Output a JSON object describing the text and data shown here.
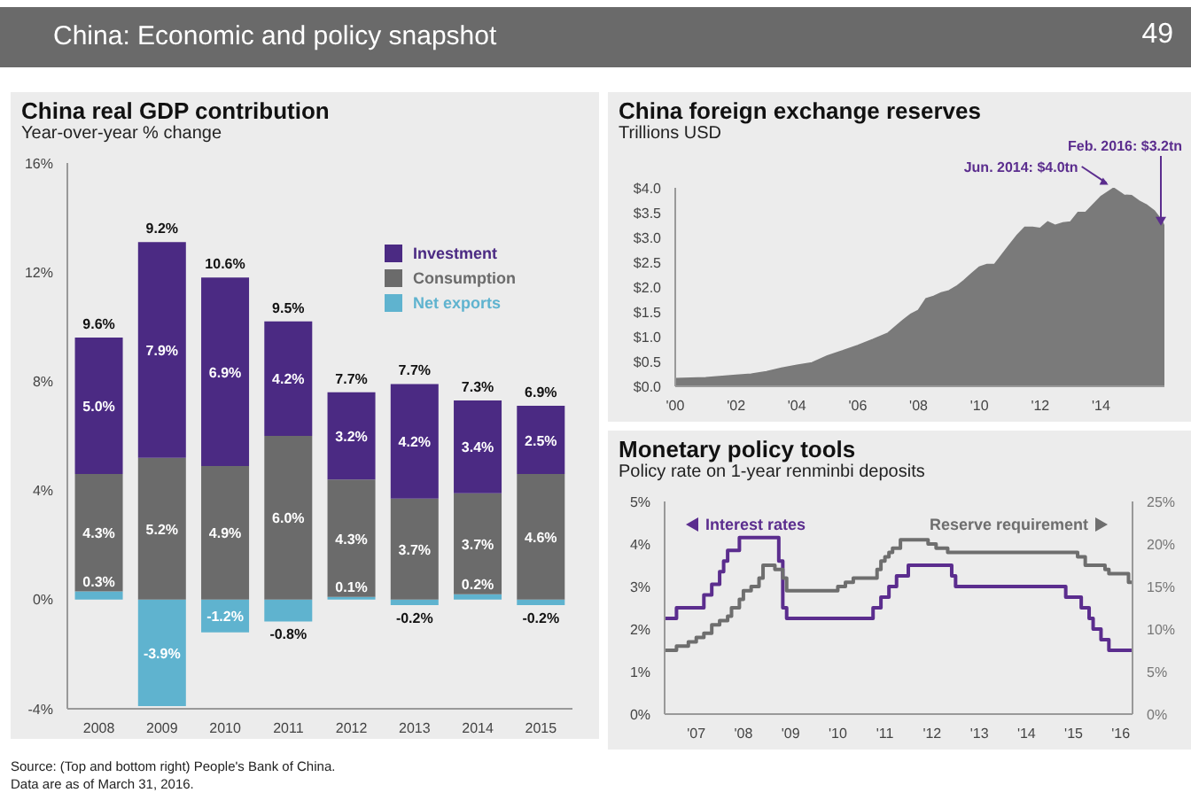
{
  "chart_data": [
    {
      "type": "bar",
      "title": "China real GDP contribution",
      "subtitle": "Year-over-year % change",
      "categories": [
        "2008",
        "2009",
        "2010",
        "2011",
        "2012",
        "2013",
        "2014",
        "2015"
      ],
      "stacked": true,
      "series": [
        {
          "name": "Net exports",
          "color": "#5fb3cf",
          "values": [
            0.3,
            -3.9,
            -1.2,
            -0.8,
            0.1,
            -0.2,
            0.2,
            -0.2
          ],
          "value_labels": [
            "0.3%",
            "-3.9%",
            "-1.2%",
            "-0.8%",
            "0.1%",
            "-0.2%",
            "0.2%",
            "-0.2%"
          ]
        },
        {
          "name": "Consumption",
          "color": "#6b6b6b",
          "values": [
            4.3,
            5.2,
            4.9,
            6.0,
            4.3,
            3.7,
            3.7,
            4.6
          ],
          "value_labels": [
            "4.3%",
            "5.2%",
            "4.9%",
            "6.0%",
            "4.3%",
            "3.7%",
            "3.7%",
            "4.6%"
          ]
        },
        {
          "name": "Investment",
          "color": "#4b2a83",
          "values": [
            5.0,
            7.9,
            6.9,
            4.2,
            3.2,
            4.2,
            3.4,
            2.5
          ],
          "value_labels": [
            "5.0%",
            "7.9%",
            "6.9%",
            "4.2%",
            "3.2%",
            "4.2%",
            "3.4%",
            "2.5%"
          ]
        }
      ],
      "totals": [
        "9.6%",
        "9.2%",
        "10.6%",
        "9.5%",
        "7.7%",
        "7.7%",
        "7.3%",
        "6.9%"
      ],
      "ylim": [
        -4,
        16
      ],
      "yticks": [
        {
          "value": -4,
          "label": "-4%"
        },
        {
          "value": 0,
          "label": "0%"
        },
        {
          "value": 4,
          "label": "4%"
        },
        {
          "value": 8,
          "label": "8%"
        },
        {
          "value": 12,
          "label": "12%"
        },
        {
          "value": 16,
          "label": "16%"
        }
      ],
      "legend": "top right",
      "annotations": [
        "China: Economic and policy snapshot",
        "49",
        "Source: (Top and bottom right) People's Bank of China.",
        "Data are as of March 31, 2016."
      ]
    },
    {
      "type": "area",
      "title": "China foreign exchange reserves",
      "subtitle": "Trillions USD",
      "color": "#7a7a7a",
      "x": [
        "2000-01",
        "2001-01",
        "2002-01",
        "2002-07",
        "2003-01",
        "2003-07",
        "2004-01",
        "2004-07",
        "2005-01",
        "2005-07",
        "2006-01",
        "2006-07",
        "2007-01",
        "2007-04",
        "2007-07",
        "2007-10",
        "2008-01",
        "2008-04",
        "2008-07",
        "2008-10",
        "2009-01",
        "2009-04",
        "2009-07",
        "2009-10",
        "2010-01",
        "2010-04",
        "2010-07",
        "2010-10",
        "2011-01",
        "2011-04",
        "2011-07",
        "2011-10",
        "2012-01",
        "2012-04",
        "2012-07",
        "2012-10",
        "2013-01",
        "2013-04",
        "2013-07",
        "2013-10",
        "2014-01",
        "2014-06",
        "2014-10",
        "2015-01",
        "2015-04",
        "2015-07",
        "2015-10",
        "2016-01",
        "2016-02"
      ],
      "values": [
        0.15,
        0.17,
        0.22,
        0.24,
        0.29,
        0.36,
        0.42,
        0.47,
        0.61,
        0.71,
        0.82,
        0.94,
        1.07,
        1.2,
        1.33,
        1.45,
        1.53,
        1.76,
        1.81,
        1.88,
        1.92,
        2.01,
        2.13,
        2.27,
        2.4,
        2.45,
        2.45,
        2.65,
        2.85,
        3.04,
        3.2,
        3.2,
        3.18,
        3.31,
        3.24,
        3.29,
        3.31,
        3.5,
        3.5,
        3.66,
        3.82,
        3.99,
        3.85,
        3.84,
        3.73,
        3.65,
        3.53,
        3.33,
        3.2
      ],
      "xlim": [
        "2000-01",
        "2016-02"
      ],
      "xticks": [
        {
          "value": "2000-01",
          "label": "'00"
        },
        {
          "value": "2002-01",
          "label": "'02"
        },
        {
          "value": "2004-01",
          "label": "'04"
        },
        {
          "value": "2006-01",
          "label": "'06"
        },
        {
          "value": "2008-01",
          "label": "'08"
        },
        {
          "value": "2010-01",
          "label": "'10"
        },
        {
          "value": "2012-01",
          "label": "'12"
        },
        {
          "value": "2014-01",
          "label": "'14"
        }
      ],
      "ylim": [
        0,
        4
      ],
      "yticks": [
        {
          "value": 0,
          "label": "$0.0"
        },
        {
          "value": 0.5,
          "label": "$0.5"
        },
        {
          "value": 1,
          "label": "$1.0"
        },
        {
          "value": 1.5,
          "label": "$1.5"
        },
        {
          "value": 2,
          "label": "$2.0"
        },
        {
          "value": 2.5,
          "label": "$2.5"
        },
        {
          "value": 3,
          "label": "$3.0"
        },
        {
          "value": 3.5,
          "label": "$3.5"
        },
        {
          "value": 4,
          "label": "$4.0"
        }
      ],
      "annotations": [
        {
          "text": "Jun. 2014: $4.0tn",
          "x": "2014-06",
          "y": 3.99
        },
        {
          "text": "Feb. 2016: $3.2tn",
          "x": "2016-02",
          "y": 3.2
        }
      ]
    },
    {
      "type": "step",
      "title": "Monetary policy tools",
      "subtitle": "Policy rate on 1-year renminbi deposits",
      "legend": "top",
      "series": [
        {
          "name": "Interest rates",
          "color": "#5b2d8e",
          "x": [
            "2006-05",
            "2006-08",
            "2007-03",
            "2007-05",
            "2007-07",
            "2007-08",
            "2007-09",
            "2007-12",
            "2008-10",
            "2008-11",
            "2008-12",
            "2010-10",
            "2010-12",
            "2011-02",
            "2011-04",
            "2011-07",
            "2012-06",
            "2012-07",
            "2014-11",
            "2015-03",
            "2015-05",
            "2015-06",
            "2015-08",
            "2015-10",
            "2016-04"
          ],
          "values": [
            2.25,
            2.5,
            2.8,
            3.05,
            3.35,
            3.6,
            3.85,
            4.15,
            3.6,
            2.5,
            2.25,
            2.5,
            2.75,
            3.0,
            3.25,
            3.5,
            3.25,
            3.0,
            2.75,
            2.5,
            2.25,
            2.0,
            1.75,
            1.5,
            1.5
          ]
        },
        {
          "name": "Reserve requirement",
          "color": "#6e6e6e",
          "axis": "y2",
          "x": [
            "2006-05",
            "2006-08",
            "2006-11",
            "2007-01",
            "2007-03",
            "2007-05",
            "2007-07",
            "2007-09",
            "2007-10",
            "2007-12",
            "2008-01",
            "2008-03",
            "2008-05",
            "2008-06",
            "2008-09",
            "2008-11",
            "2008-12",
            "2010-01",
            "2010-03",
            "2010-05",
            "2010-11",
            "2010-12",
            "2011-01",
            "2011-02",
            "2011-03",
            "2011-05",
            "2011-12",
            "2012-02",
            "2012-05",
            "2015-02",
            "2015-04",
            "2015-09",
            "2015-10",
            "2016-03",
            "2016-04"
          ],
          "values": [
            7.5,
            8,
            8.5,
            9,
            9.5,
            10.5,
            11,
            11.5,
            12.5,
            13.5,
            14.5,
            15,
            16,
            17.5,
            17,
            16,
            14.5,
            15,
            15.5,
            16,
            17,
            18,
            18.5,
            19,
            19.5,
            20.5,
            20,
            19.5,
            19,
            18.5,
            17.5,
            17,
            16.5,
            15.5,
            15.5
          ]
        }
      ],
      "xlim": [
        "2006-05",
        "2016-04"
      ],
      "xticks": [
        {
          "value": "2007-01",
          "label": "'07"
        },
        {
          "value": "2008-01",
          "label": "'08"
        },
        {
          "value": "2009-01",
          "label": "'09"
        },
        {
          "value": "2010-01",
          "label": "'10"
        },
        {
          "value": "2011-01",
          "label": "'11"
        },
        {
          "value": "2012-01",
          "label": "'12"
        },
        {
          "value": "2013-01",
          "label": "'13"
        },
        {
          "value": "2014-01",
          "label": "'14"
        },
        {
          "value": "2015-01",
          "label": "'15"
        },
        {
          "value": "2016-01",
          "label": "'16"
        }
      ],
      "ylim": [
        0,
        5
      ],
      "yticks": [
        {
          "value": 0,
          "label": "0%"
        },
        {
          "value": 1,
          "label": "1%"
        },
        {
          "value": 2,
          "label": "2%"
        },
        {
          "value": 3,
          "label": "3%"
        },
        {
          "value": 4,
          "label": "4%"
        },
        {
          "value": 5,
          "label": "5%"
        }
      ],
      "y2lim": [
        0,
        25
      ],
      "y2ticks": [
        {
          "value": 0,
          "label": "0%"
        },
        {
          "value": 5,
          "label": "5%"
        },
        {
          "value": 10,
          "label": "10%"
        },
        {
          "value": 15,
          "label": "15%"
        },
        {
          "value": 20,
          "label": "20%"
        },
        {
          "value": 25,
          "label": "25%"
        }
      ]
    }
  ]
}
